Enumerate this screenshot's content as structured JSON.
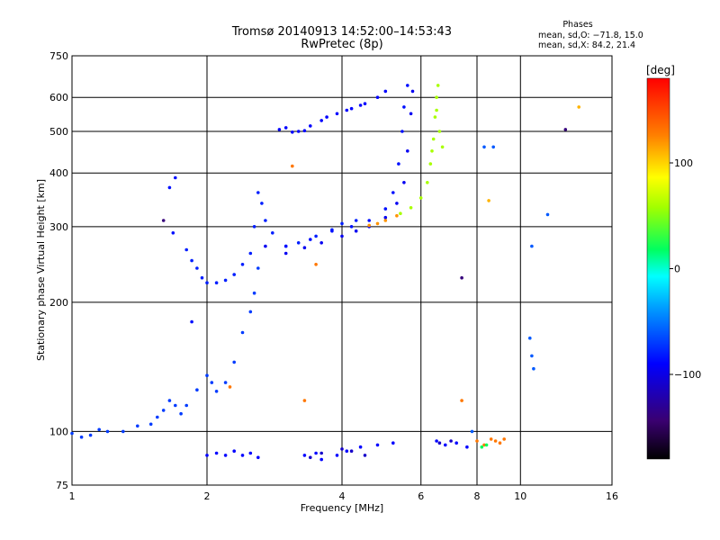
{
  "chart_data": {
    "type": "scatter",
    "title": "Tromsø 20140913 14:52:00–14:53:43",
    "subtitle": "RwPretec (8p)",
    "xlabel": "Frequency [MHz]",
    "ylabel": "Stationary phase Virtual Height [km]",
    "x_scale": "log",
    "y_scale": "log",
    "xlim": [
      1,
      16
    ],
    "ylim": [
      75,
      750
    ],
    "x_ticks": [
      1,
      2,
      4,
      6,
      8,
      10,
      16
    ],
    "x_tick_labels": [
      "1",
      "2",
      "4",
      "6",
      "8",
      "10",
      "16"
    ],
    "y_ticks": [
      75,
      100,
      200,
      300,
      400,
      500,
      600,
      750
    ],
    "y_tick_labels": [
      "75",
      "100",
      "200",
      "300",
      "400",
      "500",
      "600",
      "750"
    ],
    "grid": true,
    "stats": {
      "heading": "Phases",
      "o_line": "mean, sd,O: −71.8, 15.0",
      "x_line": "mean, sd,X:  84.2, 21.4"
    },
    "colorbar": {
      "title": "[deg]",
      "range": [
        -180,
        180
      ],
      "ticks": [
        100,
        0,
        -100
      ],
      "tick_labels": [
        "100",
        "0",
        "−100"
      ]
    },
    "series": [
      {
        "phase": -70,
        "points": [
          [
            1.0,
            99
          ],
          [
            1.05,
            97
          ],
          [
            1.1,
            98
          ],
          [
            1.15,
            101
          ],
          [
            1.2,
            100
          ],
          [
            1.3,
            100
          ],
          [
            1.4,
            103
          ],
          [
            1.5,
            104
          ],
          [
            1.55,
            108
          ],
          [
            1.6,
            112
          ],
          [
            1.65,
            118
          ],
          [
            1.7,
            115
          ],
          [
            1.75,
            110
          ],
          [
            1.8,
            115
          ],
          [
            1.9,
            125
          ],
          [
            2.0,
            135
          ],
          [
            2.05,
            130
          ],
          [
            2.1,
            124
          ],
          [
            2.2,
            130
          ],
          [
            2.3,
            145
          ],
          [
            2.4,
            170
          ],
          [
            2.5,
            190
          ],
          [
            2.55,
            210
          ],
          [
            2.6,
            240
          ]
        ]
      },
      {
        "phase": -80,
        "points": [
          [
            1.8,
            265
          ],
          [
            1.85,
            250
          ],
          [
            1.9,
            240
          ],
          [
            1.95,
            228
          ],
          [
            2.0,
            222
          ],
          [
            2.1,
            222
          ],
          [
            2.2,
            225
          ],
          [
            2.3,
            232
          ],
          [
            2.4,
            245
          ],
          [
            2.5,
            260
          ],
          [
            2.55,
            300
          ],
          [
            2.6,
            360
          ],
          [
            2.65,
            340
          ],
          [
            2.7,
            310
          ],
          [
            2.8,
            290
          ],
          [
            3.0,
            270
          ],
          [
            3.2,
            275
          ],
          [
            3.5,
            285
          ],
          [
            3.8,
            295
          ],
          [
            4.0,
            305
          ],
          [
            4.3,
            310
          ]
        ]
      },
      {
        "phase": -95,
        "points": [
          [
            2.7,
            270
          ],
          [
            3.0,
            260
          ],
          [
            3.3,
            268
          ],
          [
            3.6,
            275
          ],
          [
            4.0,
            285
          ],
          [
            4.3,
            293
          ],
          [
            4.6,
            300
          ],
          [
            5.0,
            315
          ],
          [
            5.3,
            340
          ],
          [
            5.5,
            380
          ],
          [
            5.6,
            450
          ],
          [
            5.7,
            550
          ],
          [
            5.75,
            620
          ]
        ]
      },
      {
        "phase": -85,
        "points": [
          [
            3.0,
            270
          ],
          [
            3.4,
            280
          ],
          [
            3.8,
            293
          ],
          [
            4.2,
            300
          ],
          [
            4.6,
            310
          ],
          [
            5.0,
            330
          ],
          [
            5.2,
            360
          ],
          [
            5.35,
            420
          ],
          [
            5.45,
            500
          ],
          [
            5.5,
            570
          ],
          [
            5.6,
            640
          ]
        ]
      },
      {
        "phase": -90,
        "points": [
          [
            3.0,
            510
          ],
          [
            3.2,
            500
          ],
          [
            3.4,
            515
          ],
          [
            3.6,
            530
          ],
          [
            3.9,
            550
          ],
          [
            4.2,
            565
          ],
          [
            4.5,
            580
          ],
          [
            4.8,
            600
          ],
          [
            5.0,
            620
          ],
          [
            2.9,
            505
          ],
          [
            3.1,
            498
          ],
          [
            3.3,
            502
          ],
          [
            3.7,
            540
          ],
          [
            4.1,
            560
          ],
          [
            4.4,
            575
          ]
        ]
      },
      {
        "phase": 120,
        "points": [
          [
            4.6,
            302
          ],
          [
            4.8,
            305
          ],
          [
            5.0,
            310
          ],
          [
            5.3,
            318
          ]
        ]
      },
      {
        "phase": 60,
        "points": [
          [
            5.4,
            322
          ],
          [
            5.7,
            332
          ],
          [
            6.0,
            350
          ],
          [
            6.2,
            380
          ],
          [
            6.3,
            420
          ],
          [
            6.4,
            480
          ],
          [
            6.45,
            540
          ],
          [
            6.5,
            600
          ],
          [
            6.55,
            640
          ],
          [
            6.6,
            500
          ],
          [
            6.7,
            460
          ],
          [
            6.35,
            450
          ],
          [
            6.5,
            560
          ]
        ]
      },
      {
        "phase": -90,
        "points": [
          [
            2.0,
            88
          ],
          [
            2.1,
            89
          ],
          [
            2.2,
            88
          ],
          [
            2.3,
            90
          ],
          [
            2.4,
            88
          ],
          [
            2.5,
            89
          ],
          [
            2.6,
            87
          ],
          [
            3.3,
            88
          ],
          [
            3.5,
            89
          ],
          [
            3.6,
            86
          ],
          [
            3.9,
            88
          ],
          [
            4.1,
            90
          ],
          [
            4.4,
            92
          ],
          [
            4.8,
            93
          ],
          [
            5.2,
            94
          ],
          [
            6.5,
            95
          ],
          [
            6.8,
            93
          ],
          [
            7.2,
            94
          ],
          [
            7.6,
            92
          ]
        ]
      },
      {
        "phase": -110,
        "points": [
          [
            3.4,
            87
          ],
          [
            3.6,
            89
          ],
          [
            4.0,
            91
          ],
          [
            4.2,
            90
          ],
          [
            4.5,
            88
          ],
          [
            6.6,
            94
          ],
          [
            7.0,
            95
          ]
        ]
      },
      {
        "phase": 130,
        "points": [
          [
            8.0,
            95
          ],
          [
            8.6,
            96
          ],
          [
            8.8,
            95
          ],
          [
            9.0,
            94
          ],
          [
            8.3,
            93
          ],
          [
            9.2,
            96
          ]
        ]
      },
      {
        "phase": 20,
        "points": [
          [
            8.2,
            92
          ],
          [
            8.4,
            93
          ]
        ]
      },
      {
        "phase": -60,
        "points": [
          [
            8.3,
            460
          ],
          [
            8.7,
            460
          ],
          [
            10.5,
            165
          ],
          [
            10.6,
            150
          ],
          [
            10.7,
            140
          ],
          [
            7.8,
            100
          ],
          [
            11.5,
            320
          ],
          [
            10.6,
            270
          ]
        ]
      },
      {
        "phase": 110,
        "points": [
          [
            13.5,
            570
          ],
          [
            8.5,
            345
          ]
        ]
      },
      {
        "phase": -140,
        "points": [
          [
            12.6,
            505
          ],
          [
            7.4,
            228
          ],
          [
            1.6,
            310
          ]
        ]
      },
      {
        "phase": -85,
        "points": [
          [
            1.65,
            370
          ],
          [
            1.7,
            390
          ],
          [
            1.68,
            290
          ],
          [
            1.85,
            180
          ]
        ]
      },
      {
        "phase": 130,
        "points": [
          [
            3.1,
            415
          ],
          [
            2.25,
            127
          ],
          [
            3.3,
            118
          ],
          [
            7.4,
            118
          ],
          [
            3.5,
            245
          ]
        ]
      }
    ]
  }
}
